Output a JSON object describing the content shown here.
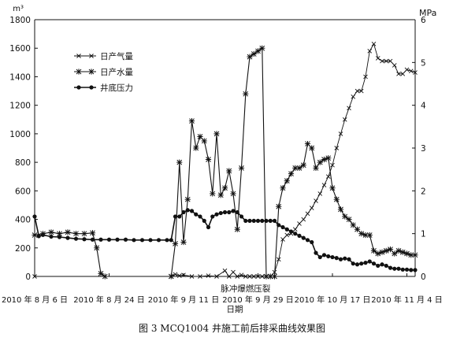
{
  "figure": {
    "caption": "图 3   MCQ1004 井施工前后排采曲线效果图"
  },
  "chart_data": {
    "type": "line",
    "y_left_unit": "m³",
    "y_right_unit": "MPa",
    "y_left_range": [
      0,
      1800
    ],
    "y_left_ticks": [
      0,
      200,
      400,
      600,
      800,
      1000,
      1200,
      1400,
      1600,
      1800
    ],
    "y_right_range": [
      0,
      6
    ],
    "y_right_ticks": [
      0,
      1,
      2,
      3,
      4,
      5,
      6
    ],
    "x_range": [
      0,
      46
    ],
    "x_label": "日期",
    "x_tick_labels": [
      "2010 年 8 月 6 日",
      "2010 年 8 月 24 日",
      "2010 年 9 月 11 日",
      "2010 年 9 月 29 日",
      "2010 年 10 月 17 日",
      "2010 年 11 月 4 日"
    ],
    "x_tick_positions": [
      0,
      9,
      18,
      27,
      36,
      45
    ],
    "annotation": {
      "text": "脉冲爆燃压裂",
      "x": 25.5
    },
    "legend_position": "top-left",
    "grid": false,
    "series": [
      {
        "name": "日产气量",
        "axis": "left",
        "marker": "x",
        "points": [
          [
            0,
            0
          ],
          [
            16.5,
            0
          ],
          [
            17,
            15
          ],
          [
            17.5,
            5
          ],
          [
            18,
            10
          ],
          [
            19,
            0
          ],
          [
            20,
            0
          ],
          [
            21,
            5
          ],
          [
            22,
            0
          ],
          [
            23,
            40
          ],
          [
            23.5,
            0
          ],
          [
            24,
            30
          ],
          [
            24.5,
            0
          ],
          [
            25,
            10
          ],
          [
            25.5,
            0
          ],
          [
            26,
            0
          ],
          [
            26.5,
            0
          ],
          [
            27,
            0
          ],
          [
            27.5,
            0
          ],
          [
            28,
            0
          ],
          [
            28.5,
            0
          ],
          [
            29,
            30
          ],
          [
            29.5,
            120
          ],
          [
            30,
            260
          ],
          [
            30.5,
            290
          ],
          [
            31,
            300
          ],
          [
            31.5,
            330
          ],
          [
            32,
            370
          ],
          [
            32.5,
            400
          ],
          [
            33,
            440
          ],
          [
            33.5,
            480
          ],
          [
            34,
            530
          ],
          [
            34.5,
            580
          ],
          [
            35,
            640
          ],
          [
            35.5,
            700
          ],
          [
            36,
            780
          ],
          [
            36.5,
            900
          ],
          [
            37,
            1000
          ],
          [
            37.5,
            1100
          ],
          [
            38,
            1180
          ],
          [
            38.5,
            1260
          ],
          [
            39,
            1300
          ],
          [
            39.5,
            1300
          ],
          [
            40,
            1400
          ],
          [
            40.5,
            1580
          ],
          [
            41,
            1630
          ],
          [
            41.5,
            1530
          ],
          [
            42,
            1510
          ],
          [
            42.5,
            1510
          ],
          [
            43,
            1510
          ],
          [
            43.5,
            1480
          ],
          [
            44,
            1420
          ],
          [
            44.5,
            1420
          ],
          [
            45,
            1450
          ],
          [
            45.5,
            1440
          ],
          [
            46,
            1430
          ]
        ]
      },
      {
        "name": "日产水量",
        "axis": "left",
        "marker": "asterisk",
        "points": [
          [
            0,
            290
          ],
          [
            1,
            300
          ],
          [
            2,
            310
          ],
          [
            3,
            300
          ],
          [
            4,
            310
          ],
          [
            5,
            300
          ],
          [
            6,
            300
          ],
          [
            7,
            305
          ],
          [
            7.5,
            200
          ],
          [
            8,
            20
          ],
          [
            8.5,
            0
          ],
          [
            16.5,
            0
          ],
          [
            17,
            230
          ],
          [
            17.5,
            800
          ],
          [
            18,
            240
          ],
          [
            18.5,
            540
          ],
          [
            19,
            1090
          ],
          [
            19.5,
            900
          ],
          [
            20,
            980
          ],
          [
            20.5,
            950
          ],
          [
            21,
            820
          ],
          [
            21.5,
            580
          ],
          [
            22,
            1000
          ],
          [
            22.5,
            570
          ],
          [
            23,
            620
          ],
          [
            23.5,
            740
          ],
          [
            24,
            580
          ],
          [
            24.5,
            330
          ],
          [
            25,
            760
          ],
          [
            25.5,
            1280
          ],
          [
            26,
            1540
          ],
          [
            26.5,
            1560
          ],
          [
            27,
            1580
          ],
          [
            27.5,
            1600
          ],
          [
            28,
            0
          ],
          [
            28.5,
            -5
          ],
          [
            29,
            0
          ],
          [
            29.5,
            490
          ],
          [
            30,
            620
          ],
          [
            30.5,
            670
          ],
          [
            31,
            720
          ],
          [
            31.5,
            760
          ],
          [
            32,
            760
          ],
          [
            32.5,
            780
          ],
          [
            33,
            930
          ],
          [
            33.5,
            900
          ],
          [
            34,
            760
          ],
          [
            34.5,
            800
          ],
          [
            35,
            820
          ],
          [
            35.5,
            830
          ],
          [
            36,
            620
          ],
          [
            36.5,
            540
          ],
          [
            37,
            470
          ],
          [
            37.5,
            420
          ],
          [
            38,
            400
          ],
          [
            38.5,
            360
          ],
          [
            39,
            330
          ],
          [
            39.5,
            300
          ],
          [
            40,
            290
          ],
          [
            40.5,
            290
          ],
          [
            41,
            180
          ],
          [
            41.5,
            160
          ],
          [
            42,
            170
          ],
          [
            42.5,
            180
          ],
          [
            43,
            190
          ],
          [
            43.5,
            160
          ],
          [
            44,
            180
          ],
          [
            44.5,
            170
          ],
          [
            45,
            160
          ],
          [
            45.5,
            150
          ],
          [
            46,
            150
          ]
        ]
      },
      {
        "name": "井底压力",
        "axis": "right",
        "marker": "dot",
        "points": [
          [
            0,
            1.4
          ],
          [
            0.5,
            0.94
          ],
          [
            1,
            0.97
          ],
          [
            2,
            0.93
          ],
          [
            3,
            0.92
          ],
          [
            4,
            0.9
          ],
          [
            5,
            0.88
          ],
          [
            6,
            0.87
          ],
          [
            7,
            0.86
          ],
          [
            8,
            0.86
          ],
          [
            9,
            0.86
          ],
          [
            10,
            0.86
          ],
          [
            11,
            0.86
          ],
          [
            12,
            0.85
          ],
          [
            13,
            0.85
          ],
          [
            14,
            0.85
          ],
          [
            15,
            0.85
          ],
          [
            16,
            0.85
          ],
          [
            16.5,
            0.85
          ],
          [
            17,
            1.4
          ],
          [
            17.5,
            1.4
          ],
          [
            18,
            1.5
          ],
          [
            18.5,
            1.55
          ],
          [
            19,
            1.53
          ],
          [
            19.5,
            1.45
          ],
          [
            20,
            1.4
          ],
          [
            20.5,
            1.3
          ],
          [
            21,
            1.15
          ],
          [
            21.5,
            1.4
          ],
          [
            22,
            1.45
          ],
          [
            22.5,
            1.48
          ],
          [
            23,
            1.5
          ],
          [
            23.5,
            1.5
          ],
          [
            24,
            1.53
          ],
          [
            24.5,
            1.5
          ],
          [
            25,
            1.4
          ],
          [
            25.5,
            1.3
          ],
          [
            26,
            1.3
          ],
          [
            26.5,
            1.3
          ],
          [
            27,
            1.3
          ],
          [
            27.5,
            1.3
          ],
          [
            28,
            1.3
          ],
          [
            28.5,
            1.3
          ],
          [
            29,
            1.3
          ],
          [
            29.5,
            1.2
          ],
          [
            30,
            1.15
          ],
          [
            30.5,
            1.1
          ],
          [
            31,
            1.05
          ],
          [
            31.5,
            1.0
          ],
          [
            32,
            0.95
          ],
          [
            32.5,
            0.9
          ],
          [
            33,
            0.85
          ],
          [
            33.5,
            0.8
          ],
          [
            34,
            0.55
          ],
          [
            34.5,
            0.45
          ],
          [
            35,
            0.5
          ],
          [
            35.5,
            0.47
          ],
          [
            36,
            0.45
          ],
          [
            36.5,
            0.43
          ],
          [
            37,
            0.4
          ],
          [
            37.5,
            0.42
          ],
          [
            38,
            0.4
          ],
          [
            38.5,
            0.3
          ],
          [
            39,
            0.28
          ],
          [
            39.5,
            0.3
          ],
          [
            40,
            0.32
          ],
          [
            40.5,
            0.35
          ],
          [
            41,
            0.3
          ],
          [
            41.5,
            0.25
          ],
          [
            42,
            0.28
          ],
          [
            42.5,
            0.25
          ],
          [
            43,
            0.2
          ],
          [
            43.5,
            0.18
          ],
          [
            44,
            0.18
          ],
          [
            44.5,
            0.16
          ],
          [
            45,
            0.16
          ],
          [
            45.5,
            0.15
          ],
          [
            46,
            0.15
          ]
        ]
      }
    ]
  }
}
